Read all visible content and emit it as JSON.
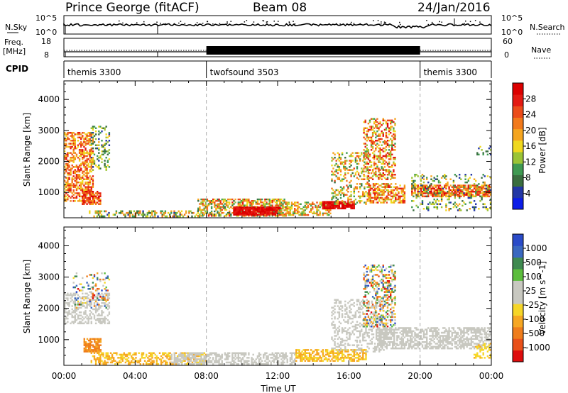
{
  "header": {
    "station": "Prince George (fitACF)",
    "beam": "Beam 08",
    "date": "24/Jan/2016"
  },
  "top_panels": {
    "nsky_label": "N.Sky",
    "nsky_ticks": [
      "10^5",
      "10^0"
    ],
    "nsearch_label": "N.Search",
    "nsearch_ticks": [
      "10^5",
      "10^0"
    ],
    "freq_label": "Freq.",
    "freq_unit": "[MHz]",
    "freq_ticks": [
      "18",
      "8"
    ],
    "nave_label": "Nave",
    "nave_ticks": [
      "60",
      "0"
    ],
    "cpid_label": "CPID",
    "cpid_segments": [
      {
        "label": "themis 3300",
        "start_h": 0,
        "end_h": 8
      },
      {
        "label": "twofsound 3503",
        "start_h": 8,
        "end_h": 20
      },
      {
        "label": "themis 3300",
        "start_h": 20,
        "end_h": 24
      }
    ]
  },
  "chart_data": [
    {
      "type": "heatmap",
      "title": "Power",
      "ylabel": "Slant Range [km]",
      "xlabel": "",
      "xlim_hours": [
        0,
        24
      ],
      "ylim": [
        180,
        4600
      ],
      "yticks": [
        1000,
        2000,
        3000,
        4000
      ],
      "colorbar": {
        "label": "Power [dB]",
        "tick_labels": [
          "4",
          "8",
          "12",
          "16",
          "20",
          "24",
          "28"
        ],
        "colors": [
          "#0c1de8",
          "#2337a6",
          "#3a6e3f",
          "#3f9a52",
          "#9bc436",
          "#f0d81e",
          "#f5a51f",
          "#f27a1c",
          "#ec4c1a",
          "#e41a12",
          "#dc0000"
        ]
      },
      "echo_regions": [
        {
          "t0": 0.0,
          "t1": 1.7,
          "r0": 700,
          "r1": 2950,
          "v0": 0.45,
          "v1": 0.95,
          "d": 0.55
        },
        {
          "t0": 1.5,
          "t1": 2.6,
          "r0": 1700,
          "r1": 3150,
          "v0": 0.05,
          "v1": 0.6,
          "d": 0.3
        },
        {
          "t0": 1.0,
          "t1": 2.1,
          "r0": 600,
          "r1": 1050,
          "v0": 0.6,
          "v1": 1.0,
          "d": 0.75
        },
        {
          "t0": 1.4,
          "t1": 8.0,
          "r0": 200,
          "r1": 420,
          "v0": 0.1,
          "v1": 0.75,
          "d": 0.5
        },
        {
          "t0": 7.5,
          "t1": 12.5,
          "r0": 220,
          "r1": 800,
          "v0": 0.2,
          "v1": 0.9,
          "d": 0.6
        },
        {
          "t0": 9.5,
          "t1": 12.2,
          "r0": 260,
          "r1": 540,
          "v0": 0.9,
          "v1": 1.0,
          "d": 0.9
        },
        {
          "t0": 12.0,
          "t1": 15.0,
          "r0": 250,
          "r1": 700,
          "v0": 0.3,
          "v1": 0.85,
          "d": 0.55
        },
        {
          "t0": 14.5,
          "t1": 16.3,
          "r0": 460,
          "r1": 720,
          "v0": 0.9,
          "v1": 1.0,
          "d": 0.9
        },
        {
          "t0": 15.0,
          "t1": 17.2,
          "r0": 600,
          "r1": 2300,
          "v0": 0.2,
          "v1": 0.8,
          "d": 0.3
        },
        {
          "t0": 16.8,
          "t1": 18.6,
          "r0": 1400,
          "r1": 3400,
          "v0": 0.3,
          "v1": 1.0,
          "d": 0.45
        },
        {
          "t0": 17.0,
          "t1": 19.2,
          "r0": 650,
          "r1": 1300,
          "v0": 0.4,
          "v1": 0.95,
          "d": 0.6
        },
        {
          "t0": 19.5,
          "t1": 24.0,
          "r0": 850,
          "r1": 1250,
          "v0": 0.55,
          "v1": 1.0,
          "d": 0.7
        },
        {
          "t0": 19.5,
          "t1": 24.0,
          "r0": 400,
          "r1": 1600,
          "v0": 0.1,
          "v1": 0.6,
          "d": 0.2
        },
        {
          "t0": 23.0,
          "t1": 24.0,
          "r0": 2200,
          "r1": 2500,
          "v0": 0.1,
          "v1": 0.5,
          "d": 0.3
        }
      ]
    },
    {
      "type": "heatmap",
      "title": "Velocity",
      "ylabel": "Slant Range [km]",
      "xlabel": "Time UT",
      "xlim_hours": [
        0,
        24
      ],
      "ylim": [
        180,
        4600
      ],
      "yticks": [
        1000,
        2000,
        3000,
        4000
      ],
      "colorbar": {
        "label": "Velocity [m s^-1]",
        "tick_labels": [
          "1000",
          "500",
          "100",
          "25",
          "-25",
          "-100",
          "-500",
          "-1000"
        ],
        "colors": [
          "#2a4bc8",
          "#3a68c0",
          "#3f8a50",
          "#5cbd3c",
          "#c8c8c0",
          "#c8c8c0",
          "#f6d628",
          "#f6a723",
          "#ef7d1c",
          "#e9511a",
          "#de0d0d"
        ]
      },
      "echo_regions": [
        {
          "t0": 0.0,
          "t1": 2.6,
          "r0": 1500,
          "r1": 2500,
          "v0": 0.45,
          "v1": 0.55,
          "d": 0.45
        },
        {
          "t0": 0.5,
          "t1": 2.6,
          "r0": 2000,
          "r1": 3150,
          "v0": 0.0,
          "v1": 1.0,
          "d": 0.2
        },
        {
          "t0": 1.1,
          "t1": 2.1,
          "r0": 600,
          "r1": 1050,
          "v0": 0.7,
          "v1": 0.85,
          "d": 0.75
        },
        {
          "t0": 1.5,
          "t1": 8.0,
          "r0": 200,
          "r1": 600,
          "v0": 0.6,
          "v1": 0.72,
          "d": 0.5
        },
        {
          "t0": 6.0,
          "t1": 13.0,
          "r0": 200,
          "r1": 600,
          "v0": 0.45,
          "v1": 0.55,
          "d": 0.55
        },
        {
          "t0": 13.0,
          "t1": 17.0,
          "r0": 300,
          "r1": 700,
          "v0": 0.6,
          "v1": 0.72,
          "d": 0.6
        },
        {
          "t0": 15.0,
          "t1": 18.0,
          "r0": 600,
          "r1": 2300,
          "v0": 0.45,
          "v1": 0.55,
          "d": 0.3
        },
        {
          "t0": 16.8,
          "t1": 18.6,
          "r0": 1400,
          "r1": 3400,
          "v0": 0.0,
          "v1": 1.0,
          "d": 0.4
        },
        {
          "t0": 17.5,
          "t1": 24.0,
          "r0": 700,
          "r1": 1400,
          "v0": 0.45,
          "v1": 0.55,
          "d": 0.6
        },
        {
          "t0": 23.0,
          "t1": 24.0,
          "r0": 400,
          "r1": 900,
          "v0": 0.55,
          "v1": 0.7,
          "d": 0.3
        }
      ]
    }
  ],
  "x_axis": {
    "tick_labels": [
      "00:00",
      "04:00",
      "08:00",
      "12:00",
      "16:00",
      "20:00",
      "00:00"
    ],
    "tick_hours": [
      0,
      4,
      8,
      12,
      16,
      20,
      24
    ],
    "title": "Time UT"
  },
  "colors": {
    "background": "#ffffff",
    "axis": "#000000",
    "dashed_marker": "#aaaaaa"
  }
}
